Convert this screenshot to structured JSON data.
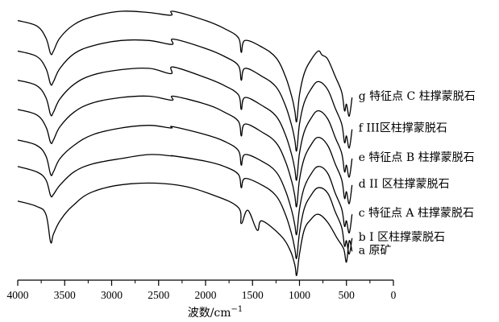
{
  "chart_data": {
    "type": "line",
    "xlabel": "波数/cm",
    "xlabel_sup": "−1",
    "xlim": [
      4000,
      0
    ],
    "x_reversed": true,
    "x_ticks": [
      4000,
      3500,
      3000,
      2500,
      2000,
      1500,
      1000,
      500,
      0
    ],
    "x_tick_labels": [
      "4000",
      "3500",
      "3000",
      "2500",
      "2000",
      "1500",
      "1000",
      "500",
      "0"
    ],
    "y_ticks_shown": false,
    "grid": false,
    "legend": "inline labels at right end of each curve",
    "series": [
      {
        "name": "a 原矿",
        "x": [
          4000,
          3800,
          3700,
          3650,
          3620,
          3550,
          3420,
          3200,
          2800,
          2300,
          1900,
          1650,
          1620,
          1550,
          1450,
          1400,
          1200,
          1100,
          1050,
          1030,
          1000,
          950,
          880,
          800,
          700,
          600,
          530,
          500,
          470,
          440
        ],
        "y": [
          0.32,
          0.3,
          0.27,
          0.165,
          0.195,
          0.245,
          0.3,
          0.355,
          0.385,
          0.38,
          0.34,
          0.295,
          0.235,
          0.285,
          0.21,
          0.245,
          0.19,
          0.135,
          0.08,
          0.04,
          0.12,
          0.21,
          0.25,
          0.27,
          0.24,
          0.18,
          0.14,
          0.09,
          0.17,
          0.13
        ]
      },
      {
        "name": "b I 区柱撑蒙脱石",
        "x": [
          4000,
          3800,
          3700,
          3650,
          3620,
          3550,
          3400,
          3200,
          2900,
          2600,
          2360,
          2340,
          2000,
          1800,
          1650,
          1620,
          1580,
          1400,
          1250,
          1150,
          1080,
          1050,
          1030,
          1000,
          950,
          880,
          800,
          700,
          620,
          550,
          520,
          500,
          470,
          440
        ],
        "y": [
          0.45,
          0.43,
          0.4,
          0.34,
          0.345,
          0.38,
          0.43,
          0.46,
          0.48,
          0.495,
          0.49,
          0.49,
          0.47,
          0.45,
          0.42,
          0.37,
          0.405,
          0.38,
          0.34,
          0.27,
          0.19,
          0.14,
          0.105,
          0.2,
          0.29,
          0.34,
          0.37,
          0.35,
          0.28,
          0.22,
          0.15,
          0.17,
          0.12,
          0.18
        ]
      },
      {
        "name": "c 特征点 A 柱撑蒙脱石",
        "x": [
          4000,
          3800,
          3700,
          3650,
          3620,
          3550,
          3400,
          3200,
          2900,
          2600,
          2370,
          2345,
          2000,
          1800,
          1650,
          1620,
          1580,
          1400,
          1250,
          1150,
          1080,
          1050,
          1030,
          1000,
          950,
          880,
          800,
          700,
          620,
          550,
          520,
          500,
          470,
          440
        ],
        "y": [
          0.55,
          0.53,
          0.49,
          0.42,
          0.43,
          0.48,
          0.53,
          0.57,
          0.595,
          0.605,
          0.595,
          0.6,
          0.57,
          0.545,
          0.51,
          0.455,
          0.495,
          0.47,
          0.43,
          0.36,
          0.28,
          0.23,
          0.195,
          0.29,
          0.37,
          0.42,
          0.45,
          0.425,
          0.35,
          0.29,
          0.225,
          0.245,
          0.2,
          0.27
        ]
      },
      {
        "name": "d II 区柱撑蒙脱石",
        "x": [
          4000,
          3800,
          3700,
          3650,
          3620,
          3550,
          3400,
          3200,
          2900,
          2600,
          2360,
          2340,
          2000,
          1800,
          1650,
          1620,
          1580,
          1400,
          1250,
          1150,
          1080,
          1050,
          1030,
          1000,
          950,
          880,
          800,
          700,
          620,
          550,
          520,
          500,
          470,
          440
        ],
        "y": [
          0.665,
          0.645,
          0.6,
          0.54,
          0.55,
          0.6,
          0.655,
          0.69,
          0.71,
          0.715,
          0.7,
          0.715,
          0.685,
          0.655,
          0.62,
          0.565,
          0.61,
          0.58,
          0.54,
          0.47,
          0.39,
          0.34,
          0.3,
          0.4,
          0.48,
          0.53,
          0.56,
          0.53,
          0.46,
          0.4,
          0.33,
          0.355,
          0.31,
          0.38
        ]
      },
      {
        "name": "e 特征点 B 柱撑蒙脱石",
        "x": [
          4000,
          3800,
          3700,
          3650,
          3620,
          3550,
          3400,
          3200,
          2900,
          2600,
          2370,
          2345,
          2000,
          1800,
          1650,
          1620,
          1580,
          1400,
          1250,
          1150,
          1080,
          1050,
          1030,
          1000,
          950,
          880,
          800,
          700,
          620,
          550,
          520,
          500,
          470,
          440
        ],
        "y": [
          0.775,
          0.755,
          0.71,
          0.645,
          0.655,
          0.705,
          0.76,
          0.795,
          0.815,
          0.82,
          0.8,
          0.825,
          0.785,
          0.755,
          0.72,
          0.665,
          0.71,
          0.68,
          0.64,
          0.57,
          0.49,
          0.44,
          0.4,
          0.5,
          0.58,
          0.63,
          0.66,
          0.63,
          0.56,
          0.5,
          0.43,
          0.455,
          0.41,
          0.48
        ]
      },
      {
        "name": "f III区柱撑蒙脱石",
        "x": [
          4000,
          3800,
          3700,
          3650,
          3620,
          3550,
          3400,
          3200,
          2900,
          2600,
          2360,
          2340,
          2000,
          1800,
          1650,
          1620,
          1580,
          1400,
          1250,
          1150,
          1080,
          1050,
          1030,
          1000,
          950,
          880,
          800,
          700,
          620,
          550,
          520,
          500,
          470,
          440
        ],
        "y": [
          0.885,
          0.865,
          0.82,
          0.76,
          0.77,
          0.82,
          0.875,
          0.905,
          0.925,
          0.925,
          0.91,
          0.93,
          0.895,
          0.865,
          0.83,
          0.775,
          0.82,
          0.79,
          0.75,
          0.68,
          0.6,
          0.55,
          0.51,
          0.61,
          0.69,
          0.74,
          0.77,
          0.74,
          0.67,
          0.61,
          0.54,
          0.565,
          0.52,
          0.59
        ]
      },
      {
        "name": "g 特征点 C 柱撑蒙脱石",
        "x": [
          4000,
          3800,
          3700,
          3650,
          3620,
          3550,
          3400,
          3200,
          2900,
          2600,
          2370,
          2345,
          2000,
          1800,
          1650,
          1620,
          1580,
          1400,
          1250,
          1150,
          1080,
          1050,
          1030,
          1000,
          950,
          880,
          800,
          760,
          700,
          620,
          550,
          520,
          500,
          470,
          440
        ],
        "y": [
          1.0,
          0.98,
          0.935,
          0.875,
          0.885,
          0.935,
          0.985,
          1.015,
          1.035,
          1.03,
          1.02,
          1.035,
          1.0,
          0.97,
          0.935,
          0.88,
          0.925,
          0.9,
          0.86,
          0.79,
          0.71,
          0.66,
          0.62,
          0.72,
          0.8,
          0.85,
          0.885,
          0.87,
          0.855,
          0.79,
          0.73,
          0.66,
          0.685,
          0.64,
          0.71
        ]
      }
    ]
  }
}
